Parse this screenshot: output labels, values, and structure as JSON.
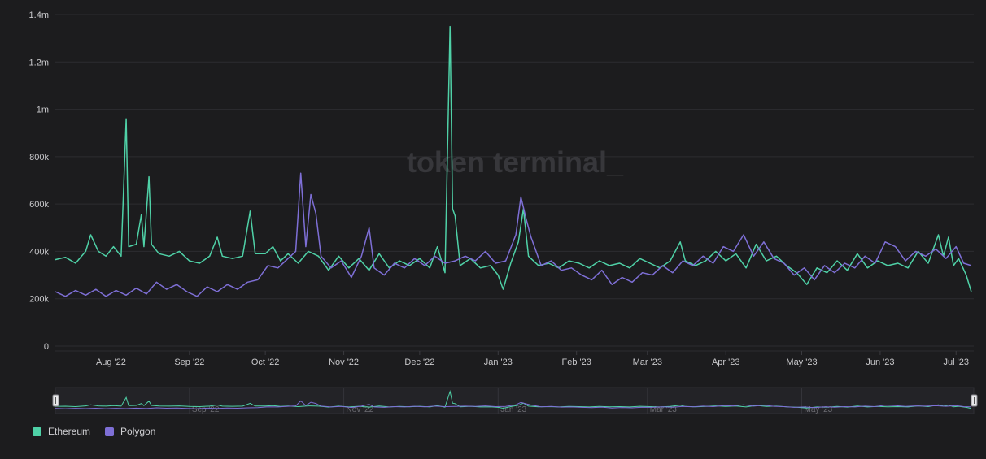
{
  "watermark": "token terminal_",
  "colors": {
    "background": "#1c1c1e",
    "grid": "#2c2c30",
    "axis_text": "#c9c9cc",
    "ethereum": "#4fd1a7",
    "polygon": "#7e6fd6"
  },
  "chart_data": {
    "type": "line",
    "title": "",
    "xlabel": "",
    "ylabel": "",
    "ylim": [
      0,
      1400000
    ],
    "y_ticks": [
      0,
      200000,
      400000,
      600000,
      800000,
      1000000,
      1200000,
      1400000
    ],
    "y_tick_labels": [
      "0",
      "200k",
      "400k",
      "600k",
      "800k",
      "1m",
      "1.2m",
      "1.4m"
    ],
    "x_range": [
      "2022-07-10",
      "2023-07-08"
    ],
    "x_ticks": [
      "2022-08-01",
      "2022-09-01",
      "2022-10-01",
      "2022-11-01",
      "2022-12-01",
      "2023-01-01",
      "2023-02-01",
      "2023-03-01",
      "2023-04-01",
      "2023-05-01",
      "2023-06-01",
      "2023-07-01"
    ],
    "x_tick_labels": [
      "Aug '22",
      "Sep '22",
      "Oct '22",
      "Nov '22",
      "Dec '22",
      "Jan '23",
      "Feb '23",
      "Mar '23",
      "Apr '23",
      "May '23",
      "Jun '23",
      "Jul '23"
    ],
    "grid": true,
    "legend_position": "bottom-left",
    "series": [
      {
        "name": "Ethereum",
        "color": "#4fd1a7",
        "points": [
          [
            "2022-07-10",
            365000
          ],
          [
            "2022-07-14",
            375000
          ],
          [
            "2022-07-18",
            350000
          ],
          [
            "2022-07-22",
            400000
          ],
          [
            "2022-07-24",
            470000
          ],
          [
            "2022-07-27",
            400000
          ],
          [
            "2022-07-30",
            380000
          ],
          [
            "2022-08-02",
            420000
          ],
          [
            "2022-08-05",
            380000
          ],
          [
            "2022-08-07",
            960000
          ],
          [
            "2022-08-08",
            420000
          ],
          [
            "2022-08-11",
            430000
          ],
          [
            "2022-08-13",
            555000
          ],
          [
            "2022-08-14",
            420000
          ],
          [
            "2022-08-16",
            715000
          ],
          [
            "2022-08-17",
            430000
          ],
          [
            "2022-08-20",
            390000
          ],
          [
            "2022-08-24",
            380000
          ],
          [
            "2022-08-28",
            400000
          ],
          [
            "2022-09-01",
            360000
          ],
          [
            "2022-09-05",
            350000
          ],
          [
            "2022-09-09",
            380000
          ],
          [
            "2022-09-12",
            460000
          ],
          [
            "2022-09-14",
            380000
          ],
          [
            "2022-09-18",
            370000
          ],
          [
            "2022-09-22",
            380000
          ],
          [
            "2022-09-25",
            570000
          ],
          [
            "2022-09-27",
            390000
          ],
          [
            "2022-10-01",
            390000
          ],
          [
            "2022-10-04",
            420000
          ],
          [
            "2022-10-07",
            360000
          ],
          [
            "2022-10-10",
            390000
          ],
          [
            "2022-10-14",
            350000
          ],
          [
            "2022-10-18",
            400000
          ],
          [
            "2022-10-22",
            380000
          ],
          [
            "2022-10-26",
            320000
          ],
          [
            "2022-10-30",
            380000
          ],
          [
            "2022-11-03",
            330000
          ],
          [
            "2022-11-07",
            370000
          ],
          [
            "2022-11-11",
            320000
          ],
          [
            "2022-11-15",
            390000
          ],
          [
            "2022-11-19",
            330000
          ],
          [
            "2022-11-23",
            360000
          ],
          [
            "2022-11-27",
            340000
          ],
          [
            "2022-12-01",
            370000
          ],
          [
            "2022-12-05",
            330000
          ],
          [
            "2022-12-08",
            420000
          ],
          [
            "2022-12-11",
            310000
          ],
          [
            "2022-12-13",
            1350000
          ],
          [
            "2022-12-14",
            580000
          ],
          [
            "2022-12-15",
            550000
          ],
          [
            "2022-12-17",
            340000
          ],
          [
            "2022-12-21",
            370000
          ],
          [
            "2022-12-25",
            330000
          ],
          [
            "2022-12-29",
            340000
          ],
          [
            "2023-01-01",
            300000
          ],
          [
            "2023-01-03",
            240000
          ],
          [
            "2023-01-06",
            350000
          ],
          [
            "2023-01-09",
            440000
          ],
          [
            "2023-01-11",
            580000
          ],
          [
            "2023-01-13",
            380000
          ],
          [
            "2023-01-17",
            340000
          ],
          [
            "2023-01-21",
            350000
          ],
          [
            "2023-01-25",
            330000
          ],
          [
            "2023-01-29",
            360000
          ],
          [
            "2023-02-02",
            350000
          ],
          [
            "2023-02-06",
            330000
          ],
          [
            "2023-02-10",
            360000
          ],
          [
            "2023-02-14",
            340000
          ],
          [
            "2023-02-18",
            350000
          ],
          [
            "2023-02-22",
            330000
          ],
          [
            "2023-02-26",
            370000
          ],
          [
            "2023-03-02",
            350000
          ],
          [
            "2023-03-06",
            330000
          ],
          [
            "2023-03-10",
            360000
          ],
          [
            "2023-03-14",
            440000
          ],
          [
            "2023-03-16",
            360000
          ],
          [
            "2023-03-20",
            340000
          ],
          [
            "2023-03-24",
            360000
          ],
          [
            "2023-03-28",
            400000
          ],
          [
            "2023-04-01",
            360000
          ],
          [
            "2023-04-05",
            390000
          ],
          [
            "2023-04-09",
            330000
          ],
          [
            "2023-04-13",
            430000
          ],
          [
            "2023-04-17",
            360000
          ],
          [
            "2023-04-21",
            380000
          ],
          [
            "2023-04-25",
            340000
          ],
          [
            "2023-04-29",
            310000
          ],
          [
            "2023-05-03",
            260000
          ],
          [
            "2023-05-07",
            330000
          ],
          [
            "2023-05-11",
            310000
          ],
          [
            "2023-05-15",
            360000
          ],
          [
            "2023-05-19",
            320000
          ],
          [
            "2023-05-23",
            390000
          ],
          [
            "2023-05-27",
            330000
          ],
          [
            "2023-05-31",
            360000
          ],
          [
            "2023-06-04",
            340000
          ],
          [
            "2023-06-08",
            350000
          ],
          [
            "2023-06-12",
            330000
          ],
          [
            "2023-06-16",
            400000
          ],
          [
            "2023-06-20",
            350000
          ],
          [
            "2023-06-24",
            470000
          ],
          [
            "2023-06-26",
            380000
          ],
          [
            "2023-06-28",
            460000
          ],
          [
            "2023-06-30",
            340000
          ],
          [
            "2023-07-02",
            370000
          ],
          [
            "2023-07-05",
            300000
          ],
          [
            "2023-07-07",
            230000
          ]
        ]
      },
      {
        "name": "Polygon",
        "color": "#7e6fd6",
        "points": [
          [
            "2022-07-10",
            230000
          ],
          [
            "2022-07-14",
            210000
          ],
          [
            "2022-07-18",
            235000
          ],
          [
            "2022-07-22",
            215000
          ],
          [
            "2022-07-26",
            240000
          ],
          [
            "2022-07-30",
            210000
          ],
          [
            "2022-08-03",
            235000
          ],
          [
            "2022-08-07",
            215000
          ],
          [
            "2022-08-11",
            245000
          ],
          [
            "2022-08-15",
            220000
          ],
          [
            "2022-08-19",
            270000
          ],
          [
            "2022-08-23",
            240000
          ],
          [
            "2022-08-27",
            260000
          ],
          [
            "2022-08-31",
            230000
          ],
          [
            "2022-09-04",
            210000
          ],
          [
            "2022-09-08",
            250000
          ],
          [
            "2022-09-12",
            230000
          ],
          [
            "2022-09-16",
            260000
          ],
          [
            "2022-09-20",
            240000
          ],
          [
            "2022-09-24",
            270000
          ],
          [
            "2022-09-28",
            280000
          ],
          [
            "2022-10-02",
            340000
          ],
          [
            "2022-10-06",
            330000
          ],
          [
            "2022-10-10",
            370000
          ],
          [
            "2022-10-13",
            400000
          ],
          [
            "2022-10-15",
            730000
          ],
          [
            "2022-10-17",
            420000
          ],
          [
            "2022-10-19",
            640000
          ],
          [
            "2022-10-21",
            560000
          ],
          [
            "2022-10-23",
            380000
          ],
          [
            "2022-10-27",
            330000
          ],
          [
            "2022-10-31",
            360000
          ],
          [
            "2022-11-04",
            290000
          ],
          [
            "2022-11-08",
            380000
          ],
          [
            "2022-11-11",
            500000
          ],
          [
            "2022-11-13",
            330000
          ],
          [
            "2022-11-17",
            300000
          ],
          [
            "2022-11-21",
            350000
          ],
          [
            "2022-11-25",
            330000
          ],
          [
            "2022-11-29",
            370000
          ],
          [
            "2022-12-03",
            340000
          ],
          [
            "2022-12-07",
            380000
          ],
          [
            "2022-12-11",
            350000
          ],
          [
            "2022-12-15",
            360000
          ],
          [
            "2022-12-19",
            380000
          ],
          [
            "2022-12-23",
            360000
          ],
          [
            "2022-12-27",
            400000
          ],
          [
            "2022-12-31",
            350000
          ],
          [
            "2023-01-04",
            360000
          ],
          [
            "2023-01-08",
            470000
          ],
          [
            "2023-01-10",
            630000
          ],
          [
            "2023-01-12",
            540000
          ],
          [
            "2023-01-14",
            460000
          ],
          [
            "2023-01-18",
            340000
          ],
          [
            "2023-01-22",
            360000
          ],
          [
            "2023-01-26",
            320000
          ],
          [
            "2023-01-30",
            330000
          ],
          [
            "2023-02-03",
            300000
          ],
          [
            "2023-02-07",
            280000
          ],
          [
            "2023-02-11",
            320000
          ],
          [
            "2023-02-15",
            260000
          ],
          [
            "2023-02-19",
            290000
          ],
          [
            "2023-02-23",
            270000
          ],
          [
            "2023-02-27",
            310000
          ],
          [
            "2023-03-03",
            300000
          ],
          [
            "2023-03-07",
            340000
          ],
          [
            "2023-03-11",
            310000
          ],
          [
            "2023-03-15",
            360000
          ],
          [
            "2023-03-19",
            340000
          ],
          [
            "2023-03-23",
            380000
          ],
          [
            "2023-03-27",
            350000
          ],
          [
            "2023-03-31",
            420000
          ],
          [
            "2023-04-04",
            400000
          ],
          [
            "2023-04-08",
            470000
          ],
          [
            "2023-04-12",
            380000
          ],
          [
            "2023-04-16",
            440000
          ],
          [
            "2023-04-20",
            370000
          ],
          [
            "2023-04-24",
            350000
          ],
          [
            "2023-04-28",
            300000
          ],
          [
            "2023-05-02",
            330000
          ],
          [
            "2023-05-06",
            280000
          ],
          [
            "2023-05-10",
            340000
          ],
          [
            "2023-05-14",
            310000
          ],
          [
            "2023-05-18",
            350000
          ],
          [
            "2023-05-22",
            330000
          ],
          [
            "2023-05-26",
            380000
          ],
          [
            "2023-05-30",
            350000
          ],
          [
            "2023-06-03",
            440000
          ],
          [
            "2023-06-07",
            420000
          ],
          [
            "2023-06-11",
            360000
          ],
          [
            "2023-06-15",
            400000
          ],
          [
            "2023-06-19",
            380000
          ],
          [
            "2023-06-23",
            410000
          ],
          [
            "2023-06-27",
            370000
          ],
          [
            "2023-07-01",
            420000
          ],
          [
            "2023-07-04",
            350000
          ],
          [
            "2023-07-07",
            340000
          ]
        ]
      }
    ]
  },
  "navigator": {
    "tick_labels": [
      "Sep '22",
      "Nov '22",
      "Jan '23",
      "Mar '23",
      "May '23"
    ],
    "tick_dates": [
      "2022-09-01",
      "2022-11-01",
      "2023-01-01",
      "2023-03-01",
      "2023-05-01"
    ]
  },
  "legend": [
    {
      "label": "Ethereum",
      "color": "#4fd1a7"
    },
    {
      "label": "Polygon",
      "color": "#7e6fd6"
    }
  ]
}
